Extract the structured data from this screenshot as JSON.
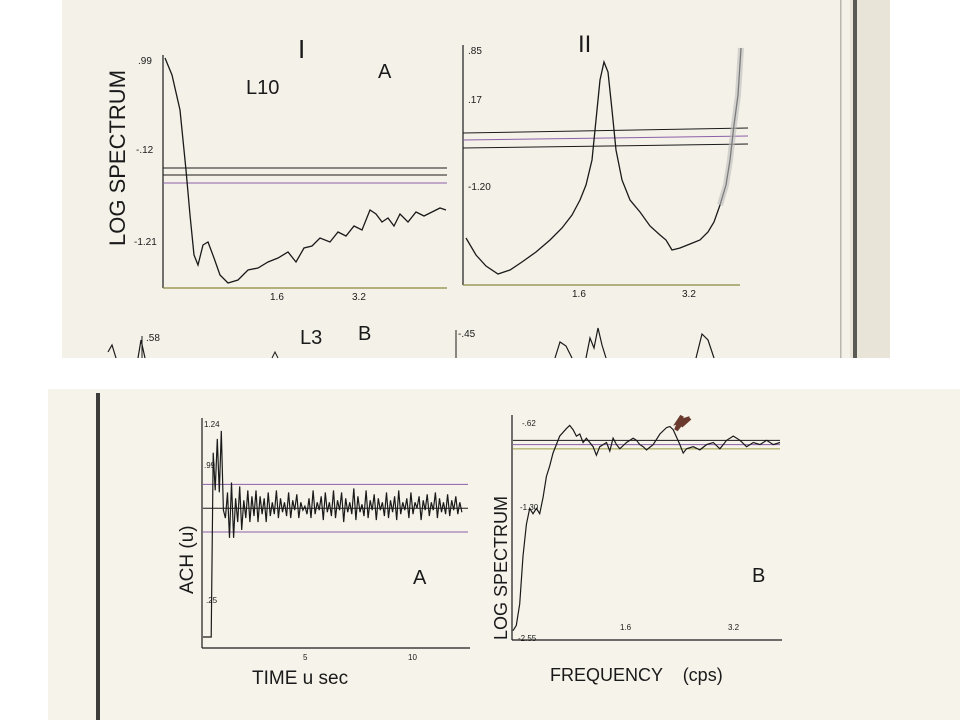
{
  "colors": {
    "paper_top": "#f4f1e8",
    "paper_bottom": "#f6f3ea",
    "ink": "#1a1a1a",
    "purple_line": "#8a5fa8",
    "olive_line": "#9a9a40",
    "margin_rule": "#b9b7ad",
    "arrow": "#6b3a2e"
  },
  "top_scan": {
    "ylabel": "LOG SPECTRUM",
    "panel_I": {
      "roman": "I",
      "letter": "A",
      "label": "L10",
      "yticks": [
        ".99",
        "-.12",
        "-1.21"
      ],
      "xticks": [
        "1.6",
        "3.2"
      ]
    },
    "panel_II": {
      "roman": "II",
      "yticks": [
        ".85",
        ".17",
        "-1.20"
      ],
      "xticks": [
        "1.6",
        "3.2"
      ]
    },
    "partial_row": {
      "label": "L3",
      "letter": "B",
      "ytick_left": ".58",
      "ytick_right": "-.45"
    }
  },
  "chart_data": [
    {
      "type": "line",
      "title": "",
      "panel": "A",
      "xlabel": "TIME u sec",
      "ylabel": "ACH (u)",
      "x_ticks": [
        "5",
        "10"
      ],
      "y_ticks": [
        "1.24",
        ".99",
        ".25"
      ],
      "xlim": [
        0,
        13
      ],
      "ylim": [
        0.2,
        1.3
      ],
      "confidence_lines": [
        0.99,
        0.87,
        0.75
      ],
      "series": [
        {
          "values": [
            [
              0,
              0.22
            ],
            [
              0.4,
              0.22
            ],
            [
              0.5,
              1.15
            ],
            [
              0.6,
              0.96
            ],
            [
              0.7,
              1.22
            ],
            [
              0.8,
              0.95
            ],
            [
              0.9,
              1.26
            ],
            [
              1.0,
              0.86
            ],
            [
              1.1,
              0.82
            ],
            [
              1.2,
              0.95
            ],
            [
              1.3,
              0.72
            ],
            [
              1.4,
              1.0
            ],
            [
              1.5,
              0.72
            ],
            [
              1.6,
              0.92
            ],
            [
              1.7,
              0.8
            ],
            [
              1.8,
              0.98
            ],
            [
              1.9,
              0.76
            ],
            [
              2.0,
              0.91
            ],
            [
              2.1,
              0.82
            ],
            [
              2.2,
              0.96
            ],
            [
              2.3,
              0.8
            ],
            [
              2.4,
              0.93
            ],
            [
              2.5,
              0.83
            ],
            [
              2.6,
              0.96
            ],
            [
              2.7,
              0.8
            ],
            [
              2.8,
              0.93
            ],
            [
              2.9,
              0.84
            ],
            [
              3.0,
              0.92
            ],
            [
              3.1,
              0.8
            ],
            [
              3.2,
              0.95
            ],
            [
              3.3,
              0.83
            ],
            [
              3.4,
              0.9
            ],
            [
              3.5,
              0.84
            ],
            [
              3.6,
              0.96
            ],
            [
              3.7,
              0.82
            ],
            [
              3.8,
              0.92
            ],
            [
              3.9,
              0.85
            ],
            [
              4.0,
              0.9
            ],
            [
              4.1,
              0.83
            ],
            [
              4.2,
              0.95
            ],
            [
              4.3,
              0.82
            ],
            [
              4.4,
              0.91
            ],
            [
              4.5,
              0.86
            ],
            [
              4.6,
              0.94
            ],
            [
              4.7,
              0.82
            ],
            [
              4.8,
              0.9
            ],
            [
              4.9,
              0.86
            ],
            [
              5.0,
              0.88
            ],
            [
              5.1,
              0.84
            ],
            [
              5.2,
              0.92
            ],
            [
              5.3,
              0.82
            ],
            [
              5.4,
              0.96
            ],
            [
              5.5,
              0.84
            ],
            [
              5.6,
              0.9
            ],
            [
              5.7,
              0.86
            ],
            [
              5.8,
              0.93
            ],
            [
              5.9,
              0.81
            ],
            [
              6.0,
              0.95
            ],
            [
              6.1,
              0.85
            ],
            [
              6.2,
              0.9
            ],
            [
              6.3,
              0.83
            ],
            [
              6.4,
              0.96
            ],
            [
              6.5,
              0.82
            ],
            [
              6.6,
              0.91
            ],
            [
              6.7,
              0.86
            ],
            [
              6.8,
              0.95
            ],
            [
              6.9,
              0.8
            ],
            [
              7.0,
              0.92
            ],
            [
              7.1,
              0.85
            ],
            [
              7.2,
              0.9
            ],
            [
              7.3,
              0.84
            ],
            [
              7.4,
              0.97
            ],
            [
              7.5,
              0.81
            ],
            [
              7.6,
              0.93
            ],
            [
              7.7,
              0.85
            ],
            [
              7.8,
              0.89
            ],
            [
              7.9,
              0.83
            ],
            [
              8.0,
              0.96
            ],
            [
              8.1,
              0.82
            ],
            [
              8.2,
              0.91
            ],
            [
              8.3,
              0.86
            ],
            [
              8.4,
              0.94
            ],
            [
              8.5,
              0.81
            ],
            [
              8.6,
              0.92
            ],
            [
              8.7,
              0.86
            ],
            [
              8.8,
              0.9
            ],
            [
              8.9,
              0.83
            ],
            [
              9.0,
              0.95
            ],
            [
              9.1,
              0.82
            ],
            [
              9.2,
              0.91
            ],
            [
              9.3,
              0.85
            ],
            [
              9.4,
              0.93
            ],
            [
              9.5,
              0.81
            ],
            [
              9.6,
              0.96
            ],
            [
              9.7,
              0.84
            ],
            [
              9.8,
              0.9
            ],
            [
              9.9,
              0.86
            ],
            [
              10.0,
              0.92
            ],
            [
              10.1,
              0.82
            ],
            [
              10.2,
              0.95
            ],
            [
              10.3,
              0.84
            ],
            [
              10.4,
              0.9
            ],
            [
              10.5,
              0.87
            ],
            [
              10.6,
              0.93
            ],
            [
              10.7,
              0.81
            ],
            [
              10.8,
              0.91
            ],
            [
              10.9,
              0.86
            ],
            [
              11.0,
              0.94
            ],
            [
              11.1,
              0.83
            ],
            [
              11.2,
              0.9
            ],
            [
              11.3,
              0.86
            ],
            [
              11.4,
              0.95
            ],
            [
              11.5,
              0.82
            ],
            [
              11.6,
              0.92
            ],
            [
              11.7,
              0.85
            ],
            [
              11.8,
              0.9
            ],
            [
              11.9,
              0.84
            ],
            [
              12.0,
              0.94
            ],
            [
              12.1,
              0.83
            ],
            [
              12.2,
              0.91
            ],
            [
              12.3,
              0.86
            ],
            [
              12.4,
              0.93
            ],
            [
              12.5,
              0.84
            ],
            [
              12.6,
              0.9
            ],
            [
              12.7,
              0.85
            ]
          ]
        }
      ]
    },
    {
      "type": "line",
      "title": "",
      "panel": "B",
      "xlabel": "FREQUENCY    (cps)",
      "ylabel": "LOG SPECTRUM",
      "x_ticks": [
        "1.6",
        "3.2"
      ],
      "y_ticks": [
        "-.62",
        "-1.30",
        "-2.55"
      ],
      "xlim": [
        0,
        4.0
      ],
      "ylim": [
        -2.6,
        -0.55
      ],
      "confidence_lines": [
        -0.76,
        -0.8,
        -0.84
      ],
      "arrow_at": 2.35,
      "series": [
        {
          "values": [
            [
              0,
              -2.55
            ],
            [
              0.05,
              -2.5
            ],
            [
              0.1,
              -2.3
            ],
            [
              0.15,
              -1.85
            ],
            [
              0.2,
              -1.55
            ],
            [
              0.25,
              -1.4
            ],
            [
              0.3,
              -1.45
            ],
            [
              0.35,
              -1.4
            ],
            [
              0.4,
              -1.45
            ],
            [
              0.45,
              -1.3
            ],
            [
              0.5,
              -1.1
            ],
            [
              0.55,
              -1.0
            ],
            [
              0.6,
              -0.88
            ],
            [
              0.7,
              -0.72
            ],
            [
              0.8,
              -0.65
            ],
            [
              0.85,
              -0.62
            ],
            [
              0.9,
              -0.66
            ],
            [
              0.95,
              -0.72
            ],
            [
              1.0,
              -0.7
            ],
            [
              1.05,
              -0.78
            ],
            [
              1.1,
              -0.74
            ],
            [
              1.2,
              -0.82
            ],
            [
              1.25,
              -0.9
            ],
            [
              1.3,
              -0.82
            ],
            [
              1.4,
              -0.78
            ],
            [
              1.45,
              -0.86
            ],
            [
              1.5,
              -0.74
            ],
            [
              1.55,
              -0.8
            ],
            [
              1.6,
              -0.84
            ],
            [
              1.7,
              -0.78
            ],
            [
              1.8,
              -0.74
            ],
            [
              1.85,
              -0.76
            ],
            [
              1.9,
              -0.8
            ],
            [
              1.95,
              -0.82
            ],
            [
              2.0,
              -0.85
            ],
            [
              2.1,
              -0.8
            ],
            [
              2.2,
              -0.7
            ],
            [
              2.3,
              -0.64
            ],
            [
              2.35,
              -0.63
            ],
            [
              2.4,
              -0.66
            ],
            [
              2.5,
              -0.8
            ],
            [
              2.55,
              -0.88
            ],
            [
              2.6,
              -0.84
            ],
            [
              2.7,
              -0.82
            ],
            [
              2.8,
              -0.85
            ],
            [
              2.9,
              -0.8
            ],
            [
              3.0,
              -0.78
            ],
            [
              3.1,
              -0.84
            ],
            [
              3.2,
              -0.76
            ],
            [
              3.3,
              -0.72
            ],
            [
              3.4,
              -0.76
            ],
            [
              3.5,
              -0.82
            ],
            [
              3.6,
              -0.78
            ],
            [
              3.7,
              -0.8
            ],
            [
              3.8,
              -0.76
            ],
            [
              3.9,
              -0.8
            ],
            [
              4.0,
              -0.78
            ]
          ]
        }
      ]
    }
  ]
}
